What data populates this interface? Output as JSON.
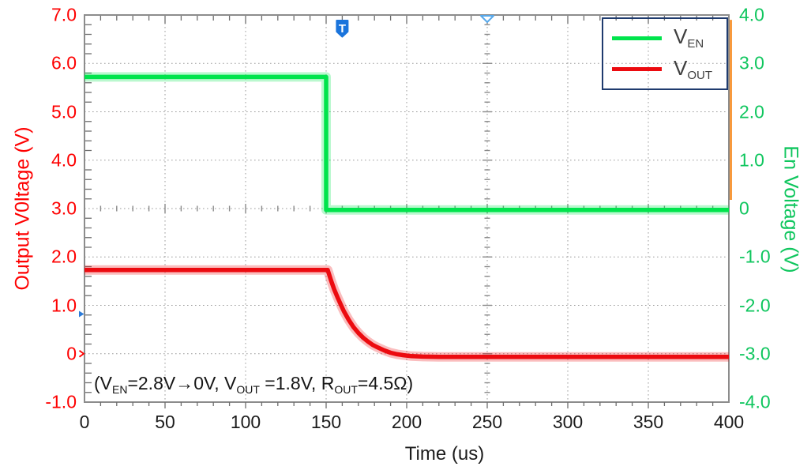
{
  "axes": {
    "x": {
      "title": "Time (us)",
      "ticks": [
        "0",
        "50",
        "100",
        "150",
        "200",
        "250",
        "300",
        "350",
        "400"
      ],
      "color": "#1c1c1c"
    },
    "left": {
      "title": "Output V0ltage (V)",
      "ticks": [
        "7.0",
        "6.0",
        "5.0",
        "4.0",
        "3.0",
        "2.0",
        "1.0",
        "0",
        "-1.0"
      ],
      "color": "#fe0000"
    },
    "right": {
      "title": "En Voltage (V)",
      "ticks": [
        "4.0",
        "3.0",
        "2.0",
        "1.0",
        "0",
        "-1.0",
        "-2.0",
        "-3.0",
        "-4.0"
      ],
      "color": "#0fc65e"
    }
  },
  "legend": {
    "border_color": "#1f3b6e",
    "items": [
      {
        "name": "V",
        "sub": "EN",
        "color": "#00e44c"
      },
      {
        "name": "V",
        "sub": "OUT",
        "color": "#ec0b10"
      }
    ]
  },
  "annotation": {
    "segments": [
      {
        "text": "(V"
      },
      {
        "text": "EN",
        "sub": true
      },
      {
        "text": "=2.8V→0V, V"
      },
      {
        "text": "OUT",
        "sub": true
      },
      {
        "text": " =1.8V, R"
      },
      {
        "text": "OUT",
        "sub": true
      },
      {
        "text": "=4.5Ω)"
      }
    ]
  },
  "chart_data": {
    "type": "line",
    "title": "",
    "xlabel": "Time (us)",
    "ylabel_left": "Output V0ltage (V)",
    "ylabel_right": "En Voltage (V)",
    "xlim": [
      0,
      400
    ],
    "ylim_left": [
      -1.0,
      7.0
    ],
    "ylim_right": [
      -4.0,
      4.0
    ],
    "x_major_step": 50,
    "x_minor_step": 10,
    "y_major_step": 1.0,
    "y_minor_step": 0.2,
    "grid": "dotted at major divisions, oscilloscope crosshair with minor ticks at x=250us and left 3.0V / right 0V",
    "legend_position": "top-right",
    "series": [
      {
        "name": "V_EN",
        "axis": "right",
        "color": "#00e44c",
        "description": "enable voltage, high ~2.72V until 150us then steps to ~0V",
        "points": [
          [
            0,
            2.72
          ],
          [
            150,
            2.72
          ],
          [
            150,
            -0.03
          ],
          [
            400,
            -0.03
          ]
        ]
      },
      {
        "name": "V_OUT",
        "axis": "left",
        "color": "#ec0b10",
        "description": "output voltage, ~1.73V until 151us then exponential decay (tau~13us) to ~-0.06V",
        "points": [
          [
            0,
            1.73
          ],
          [
            151,
            1.73
          ],
          [
            153,
            1.52
          ],
          [
            155,
            1.33
          ],
          [
            157,
            1.17
          ],
          [
            159,
            1.02
          ],
          [
            161,
            0.88
          ],
          [
            164,
            0.7
          ],
          [
            167,
            0.55
          ],
          [
            170,
            0.43
          ],
          [
            173,
            0.33
          ],
          [
            176,
            0.25
          ],
          [
            179,
            0.18
          ],
          [
            182,
            0.13
          ],
          [
            186,
            0.07
          ],
          [
            190,
            0.02
          ],
          [
            194,
            -0.01
          ],
          [
            198,
            -0.03
          ],
          [
            203,
            -0.05
          ],
          [
            210,
            -0.06
          ],
          [
            220,
            -0.065
          ],
          [
            400,
            -0.065
          ]
        ]
      }
    ],
    "markers": {
      "trigger_badge": {
        "label": "T",
        "t_us": 160,
        "color": "#1a74dc"
      },
      "top_triangle": {
        "t_us": 250,
        "color": "#57a8ea"
      },
      "crosshair": {
        "x_us": 250,
        "y_left": 3.0
      },
      "left_edge_markers": [
        {
          "color": "#2b7bd9",
          "y_left": 0.82,
          "shape": "filled-arrow-right"
        },
        {
          "color": "#fe0000",
          "y_left": 0.0,
          "shape": "open-chevron-right"
        }
      ],
      "right_edge_line": {
        "color": "#f89a3d",
        "from_right_v": 3.9,
        "to_right_v": 0.18
      }
    }
  }
}
